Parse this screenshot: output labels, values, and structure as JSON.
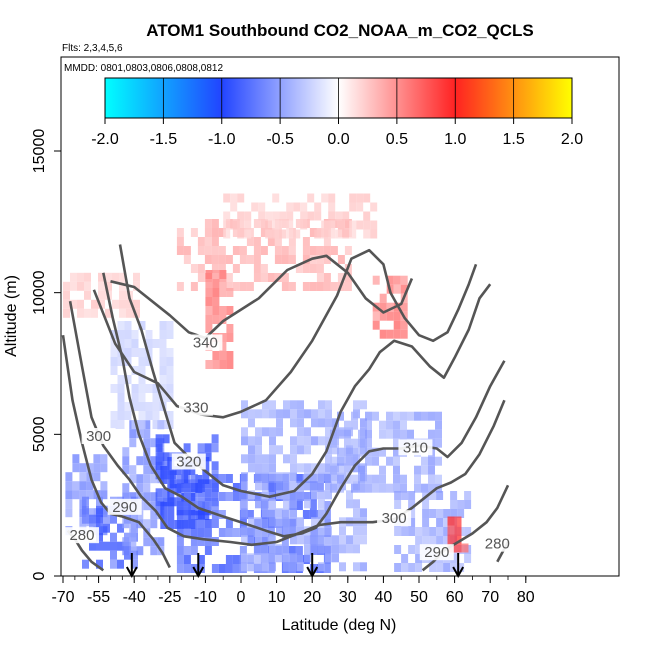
{
  "chart_data": {
    "type": "heatmap",
    "title": "ATOM1 Southbound CO2_NOAA_m_CO2_QCLS",
    "flights_note": "Flts: 2,3,4,5,6",
    "mmdd_note": "MMDD: 0801,0803,0806,0808,0812",
    "xlabel": "Latitude (deg N)",
    "ylabel": "Altitude (m)",
    "xlim": [
      -70,
      80
    ],
    "ylim": [
      0,
      17500
    ],
    "x_ticks": [
      -70,
      -55,
      -40,
      -25,
      -10,
      0,
      10,
      20,
      30,
      40,
      50,
      60,
      70,
      80
    ],
    "y_ticks": [
      0,
      5000,
      10000,
      15000
    ],
    "colorbar": {
      "range": [
        -2.0,
        2.0
      ],
      "ticks": [
        "-2.0",
        "-1.5",
        "-1.0",
        "-0.5",
        "0.0",
        "0.5",
        "1.0",
        "1.5",
        "2.0"
      ],
      "colors": [
        "#00ffff",
        "#2255ff",
        "#ffffff",
        "#ff2222",
        "#ffff00"
      ]
    },
    "contour_labels": [
      {
        "label": "340",
        "x": -10,
        "y": 8100
      },
      {
        "label": "330",
        "x": -14,
        "y": 5800
      },
      {
        "label": "320",
        "x": -17,
        "y": 3900
      },
      {
        "label": "310",
        "x": 49,
        "y": 4400
      },
      {
        "label": "300",
        "x": -55,
        "y": 4800
      },
      {
        "label": "300",
        "x": 43,
        "y": 1900
      },
      {
        "label": "290",
        "x": -44,
        "y": 2300
      },
      {
        "label": "290",
        "x": 55,
        "y": 700
      },
      {
        "label": "280",
        "x": -62,
        "y": 1300
      },
      {
        "label": "280",
        "x": 72,
        "y": 1000
      }
    ],
    "contours": [
      {
        "level": 340,
        "points": [
          [
            -50,
            10400
          ],
          [
            -40,
            10200
          ],
          [
            -25,
            9200
          ],
          [
            -17,
            8600
          ],
          [
            -10,
            8400
          ],
          [
            -5,
            9000
          ],
          [
            5,
            9800
          ],
          [
            13,
            10800
          ],
          [
            20,
            11200
          ],
          [
            24,
            11300
          ],
          [
            30,
            10700
          ],
          [
            35,
            9800
          ],
          [
            40,
            9300
          ],
          [
            45,
            9600
          ],
          [
            48,
            10500
          ]
        ]
      },
      {
        "level": 330,
        "points": [
          [
            -57,
            10100
          ],
          [
            -48,
            8200
          ],
          [
            -40,
            7200
          ],
          [
            -30,
            6800
          ],
          [
            -22,
            6000
          ],
          [
            -12,
            5700
          ],
          [
            -5,
            5600
          ],
          [
            0,
            5800
          ],
          [
            7,
            6200
          ],
          [
            14,
            7200
          ],
          [
            20,
            8300
          ],
          [
            27,
            9900
          ],
          [
            31,
            11200
          ],
          [
            36,
            11500
          ],
          [
            40,
            11000
          ],
          [
            42,
            10000
          ],
          [
            46,
            9100
          ],
          [
            50,
            8500
          ],
          [
            54,
            8300
          ],
          [
            58,
            8600
          ],
          [
            61,
            9400
          ],
          [
            64,
            10300
          ],
          [
            66,
            11000
          ]
        ]
      },
      {
        "level": 320,
        "points": [
          [
            -46,
            11700
          ],
          [
            -42,
            9800
          ],
          [
            -37,
            8700
          ],
          [
            -32,
            7200
          ],
          [
            -27,
            5800
          ],
          [
            -23,
            4700
          ],
          [
            -17,
            4200
          ],
          [
            -10,
            3700
          ],
          [
            -5,
            3200
          ],
          [
            0,
            3000
          ],
          [
            8,
            2800
          ],
          [
            15,
            3000
          ],
          [
            20,
            3600
          ],
          [
            24,
            4400
          ],
          [
            28,
            5800
          ],
          [
            32,
            6700
          ],
          [
            36,
            7300
          ],
          [
            39,
            7900
          ],
          [
            43,
            8300
          ],
          [
            48,
            8100
          ],
          [
            53,
            7400
          ],
          [
            57,
            7000
          ],
          [
            60,
            7700
          ],
          [
            64,
            8700
          ],
          [
            67,
            9800
          ],
          [
            70,
            10300
          ]
        ]
      },
      {
        "level": 310,
        "points": [
          [
            -53,
            10700
          ],
          [
            -49,
            9100
          ],
          [
            -45,
            7700
          ],
          [
            -42,
            6300
          ],
          [
            -38,
            5000
          ],
          [
            -33,
            3900
          ],
          [
            -27,
            3100
          ],
          [
            -20,
            2800
          ],
          [
            -13,
            2400
          ],
          [
            -5,
            2100
          ],
          [
            0,
            1900
          ],
          [
            7,
            1600
          ],
          [
            12,
            1400
          ],
          [
            17,
            1500
          ],
          [
            21,
            1700
          ],
          [
            24,
            2200
          ],
          [
            28,
            3100
          ],
          [
            32,
            3900
          ],
          [
            36,
            4400
          ],
          [
            40,
            4500
          ],
          [
            45,
            4500
          ],
          [
            50,
            4600
          ],
          [
            55,
            4500
          ],
          [
            58,
            4200
          ],
          [
            62,
            4700
          ],
          [
            66,
            5600
          ],
          [
            70,
            6700
          ],
          [
            74,
            7600
          ]
        ]
      },
      {
        "level": 300,
        "points": [
          [
            -67,
            9700
          ],
          [
            -62,
            7400
          ],
          [
            -58,
            5600
          ],
          [
            -53,
            4600
          ],
          [
            -47,
            3900
          ],
          [
            -42,
            3400
          ],
          [
            -37,
            2800
          ],
          [
            -31,
            2300
          ],
          [
            -26,
            1700
          ],
          [
            -19,
            1400
          ],
          [
            -11,
            1300
          ],
          [
            -3,
            1200
          ],
          [
            3,
            1100
          ],
          [
            10,
            1200
          ],
          [
            16,
            1500
          ],
          [
            22,
            1800
          ],
          [
            28,
            1900
          ],
          [
            33,
            1900
          ],
          [
            37,
            1900
          ],
          [
            43,
            2000
          ],
          [
            48,
            2400
          ],
          [
            52,
            2800
          ],
          [
            55,
            3100
          ],
          [
            59,
            3300
          ],
          [
            63,
            3600
          ],
          [
            67,
            4300
          ],
          [
            71,
            5300
          ],
          [
            74,
            6200
          ]
        ]
      },
      {
        "level": 290,
        "points": [
          [
            -70,
            8500
          ],
          [
            -66,
            6200
          ],
          [
            -62,
            4700
          ],
          [
            -58,
            3400
          ],
          [
            -54,
            2600
          ],
          [
            -50,
            2200
          ],
          [
            -45,
            2100
          ],
          [
            -38,
            1900
          ],
          [
            -32,
            1300
          ],
          [
            -28,
            800
          ],
          [
            -25,
            300
          ]
        ]
      },
      {
        "level": 290,
        "points": [
          [
            51,
            200
          ],
          [
            54,
            500
          ],
          [
            57,
            900
          ],
          [
            61,
            1200
          ],
          [
            65,
            1500
          ],
          [
            69,
            1900
          ],
          [
            72,
            2400
          ],
          [
            75,
            3200
          ]
        ]
      },
      {
        "level": 280,
        "points": [
          [
            -68,
            1600
          ],
          [
            -65,
            1300
          ],
          [
            -62,
            900
          ],
          [
            -58,
            500
          ],
          [
            -53,
            200
          ]
        ]
      },
      {
        "level": 280,
        "points": [
          [
            72,
            500
          ],
          [
            75,
            1200
          ]
        ]
      }
    ],
    "blue_regions": [
      {
        "lat": [
          -69,
          -52
        ],
        "alt": [
          1500,
          4300
        ],
        "anomaly": -0.5
      },
      {
        "lat": [
          -62,
          -40
        ],
        "alt": [
          400,
          2800
        ],
        "anomaly": -0.7
      },
      {
        "lat": [
          -45,
          -28
        ],
        "alt": [
          1000,
          5500
        ],
        "anomaly": -0.5
      },
      {
        "lat": [
          -31,
          -8
        ],
        "alt": [
          2200,
          5000
        ],
        "anomaly": -0.8
      },
      {
        "lat": [
          -29,
          -10
        ],
        "alt": [
          1700,
          4200
        ],
        "anomaly": -1.1
      },
      {
        "lat": [
          -22,
          25
        ],
        "alt": [
          300,
          3600
        ],
        "anomaly": -0.7
      },
      {
        "lat": [
          0,
          35
        ],
        "alt": [
          300,
          6200
        ],
        "anomaly": -0.4
      },
      {
        "lat": [
          25,
          55
        ],
        "alt": [
          3000,
          5800
        ],
        "anomaly": -0.4
      },
      {
        "lat": [
          43,
          63
        ],
        "alt": [
          300,
          3000
        ],
        "anomaly": -0.4
      },
      {
        "lat": [
          -50,
          -25
        ],
        "alt": [
          5500,
          9000
        ],
        "anomaly": -0.2
      }
    ],
    "red_regions": [
      {
        "lat": [
          -22,
          30
        ],
        "alt": [
          10300,
          12600
        ],
        "anomaly": 0.3
      },
      {
        "lat": [
          -5,
          38
        ],
        "alt": [
          12000,
          13500
        ],
        "anomaly": 0.2
      },
      {
        "lat": [
          -10,
          -3
        ],
        "alt": [
          7500,
          10800
        ],
        "anomaly": 0.5
      },
      {
        "lat": [
          37,
          45
        ],
        "alt": [
          8600,
          10600
        ],
        "anomaly": 0.5
      },
      {
        "lat": [
          -70,
          -38
        ],
        "alt": [
          9400,
          10700
        ],
        "anomaly": 0.2
      },
      {
        "lat": [
          58,
          62
        ],
        "alt": [
          1000,
          2100
        ],
        "anomaly": 0.7
      }
    ],
    "arrow_markers": [
      -41,
      -13,
      20,
      61
    ]
  }
}
